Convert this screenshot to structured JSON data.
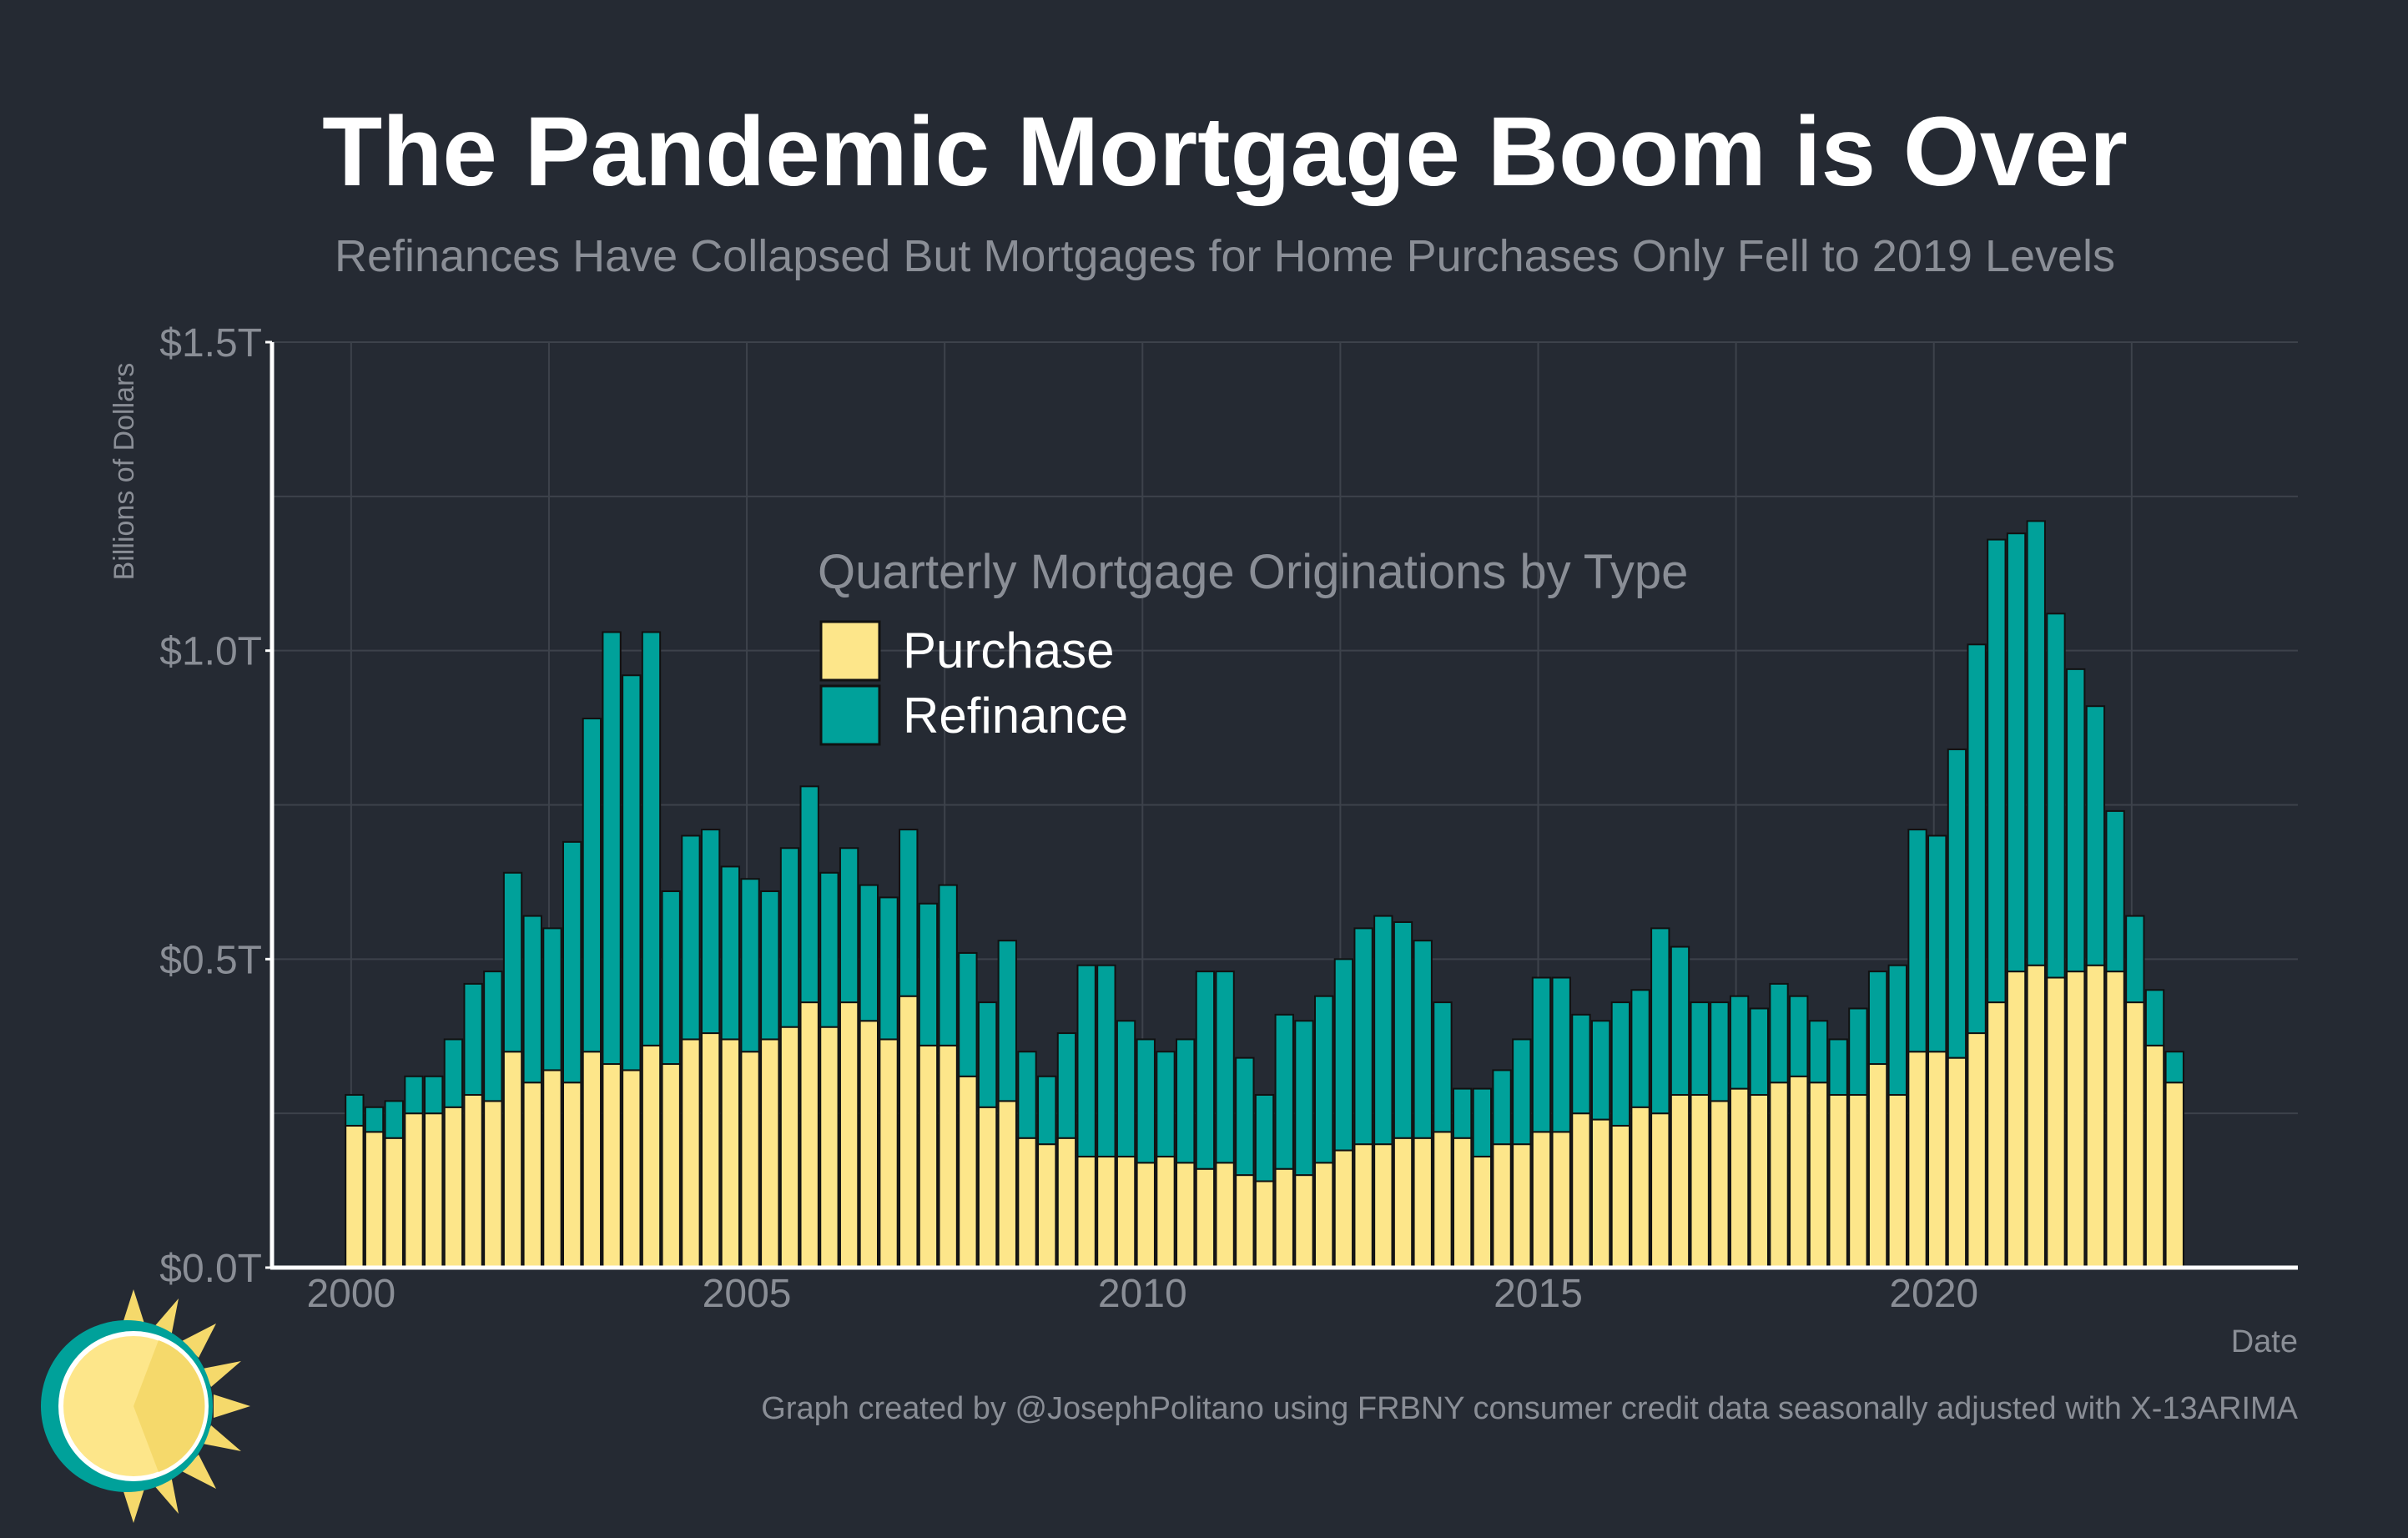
{
  "chart_data": {
    "type": "bar",
    "stacked": true,
    "title": "The Pandemic Mortgage Boom is Over",
    "subtitle": "Refinances Have Collapsed But Mortgages for Home Purchases Only Fell to 2019 Levels",
    "ylabel": "Billions of Dollars",
    "xlabel": "Date",
    "ylim": [
      0,
      1.5
    ],
    "xlim": [
      1999.0,
      2024.6
    ],
    "y_ticks": [
      {
        "value": 0,
        "label": "$0.0T"
      },
      {
        "value": 0.5,
        "label": "$0.5T"
      },
      {
        "value": 1.0,
        "label": "$1.0T"
      },
      {
        "value": 1.5,
        "label": "$1.5T"
      }
    ],
    "x_ticks": [
      {
        "value": 2000,
        "label": "2000"
      },
      {
        "value": 2005,
        "label": "2005"
      },
      {
        "value": 2010,
        "label": "2010"
      },
      {
        "value": 2015,
        "label": "2015"
      },
      {
        "value": 2020,
        "label": "2020"
      }
    ],
    "grid": true,
    "legend": {
      "title": "Quarterly Mortgage Originations by Type",
      "position": "inside-top-center"
    },
    "x_start": "2000 Q1",
    "x_end": "2023 Q1",
    "frequency": "quarterly",
    "series": [
      {
        "name": "Purchase",
        "color": "#fde68a",
        "values": [
          0.23,
          0.22,
          0.21,
          0.25,
          0.25,
          0.26,
          0.28,
          0.27,
          0.35,
          0.3,
          0.32,
          0.3,
          0.35,
          0.33,
          0.32,
          0.36,
          0.33,
          0.37,
          0.38,
          0.37,
          0.35,
          0.37,
          0.39,
          0.43,
          0.39,
          0.43,
          0.4,
          0.37,
          0.44,
          0.36,
          0.36,
          0.31,
          0.26,
          0.27,
          0.21,
          0.2,
          0.21,
          0.18,
          0.18,
          0.18,
          0.17,
          0.18,
          0.17,
          0.16,
          0.17,
          0.15,
          0.14,
          0.16,
          0.15,
          0.17,
          0.19,
          0.2,
          0.2,
          0.21,
          0.21,
          0.22,
          0.21,
          0.18,
          0.2,
          0.2,
          0.22,
          0.22,
          0.25,
          0.24,
          0.23,
          0.26,
          0.25,
          0.28,
          0.28,
          0.27,
          0.29,
          0.28,
          0.3,
          0.31,
          0.3,
          0.28,
          0.28,
          0.33,
          0.28,
          0.35,
          0.35,
          0.34,
          0.38,
          0.43,
          0.48,
          0.49,
          0.47,
          0.48,
          0.49,
          0.48,
          0.43,
          0.36,
          0.3
        ]
      },
      {
        "name": "Refinance",
        "color": "#00a19a",
        "values": [
          0.05,
          0.04,
          0.06,
          0.06,
          0.06,
          0.11,
          0.18,
          0.21,
          0.29,
          0.27,
          0.23,
          0.39,
          0.54,
          0.7,
          0.64,
          0.67,
          0.28,
          0.33,
          0.33,
          0.28,
          0.28,
          0.24,
          0.29,
          0.35,
          0.25,
          0.25,
          0.22,
          0.23,
          0.27,
          0.23,
          0.26,
          0.2,
          0.17,
          0.26,
          0.14,
          0.11,
          0.17,
          0.31,
          0.31,
          0.22,
          0.2,
          0.17,
          0.2,
          0.32,
          0.31,
          0.19,
          0.14,
          0.25,
          0.25,
          0.27,
          0.31,
          0.35,
          0.37,
          0.35,
          0.32,
          0.21,
          0.08,
          0.11,
          0.12,
          0.17,
          0.25,
          0.25,
          0.16,
          0.16,
          0.2,
          0.19,
          0.3,
          0.24,
          0.15,
          0.16,
          0.15,
          0.14,
          0.16,
          0.13,
          0.1,
          0.09,
          0.14,
          0.15,
          0.21,
          0.36,
          0.35,
          0.5,
          0.63,
          0.75,
          0.71,
          0.72,
          0.59,
          0.49,
          0.42,
          0.26,
          0.14,
          0.09,
          0.05
        ]
      }
    ]
  },
  "footer": {
    "caption": "Graph created by @JosephPolitano using FRBNY consumer credit data seasonally adjusted with X-13ARIMA",
    "logo_icon": "sun-logo-icon"
  }
}
